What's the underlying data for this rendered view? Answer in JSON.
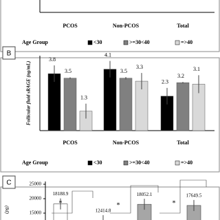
{
  "chart_data": [
    {
      "type": "bar",
      "categories": [
        "PCOS",
        "Non-PCOS",
        "Total"
      ],
      "legend_title": "Age Group",
      "legend": [
        {
          "name": "<30",
          "color": "#000000"
        },
        {
          "name": ">=30<40",
          "color": "#808080"
        },
        {
          "name": "=>40",
          "color": "#d9d9d9"
        }
      ]
    },
    {
      "type": "bar",
      "panel_label": "B",
      "y_label": "Follicular fluid sRAGE (ng/mL)",
      "ylim": [
        0,
        5
      ],
      "categories": [
        "PCOS",
        "Non-PCOS",
        "Total"
      ],
      "legend_title": "Age Group",
      "series": [
        {
          "name": "<30",
          "color": "#000000",
          "values": [
            3.8,
            4.1,
            2.3
          ],
          "errors": [
            0.55,
            0.55,
            0.55
          ]
        },
        {
          "name": ">=30<40",
          "color": "#808080",
          "values": [
            3.5,
            3.5,
            3.2
          ],
          "errors": [
            0.06,
            0.08,
            0.05
          ]
        },
        {
          "name": "=>40",
          "color": "#d9d9d9",
          "values": [
            1.3,
            3.3,
            3.1
          ],
          "errors": [
            0.5,
            0.55,
            0.6
          ]
        }
      ]
    },
    {
      "type": "bar",
      "panel_label": "C",
      "y_label": "(pg)",
      "ylim": [
        10000,
        25000
      ],
      "yticks": [
        15000,
        20000,
        25000
      ],
      "values": [
        18188.9,
        12414.8,
        18052.1,
        17649.5
      ],
      "color": "#a6a6a6",
      "annotations": [
        "*",
        "*",
        "*"
      ]
    }
  ]
}
